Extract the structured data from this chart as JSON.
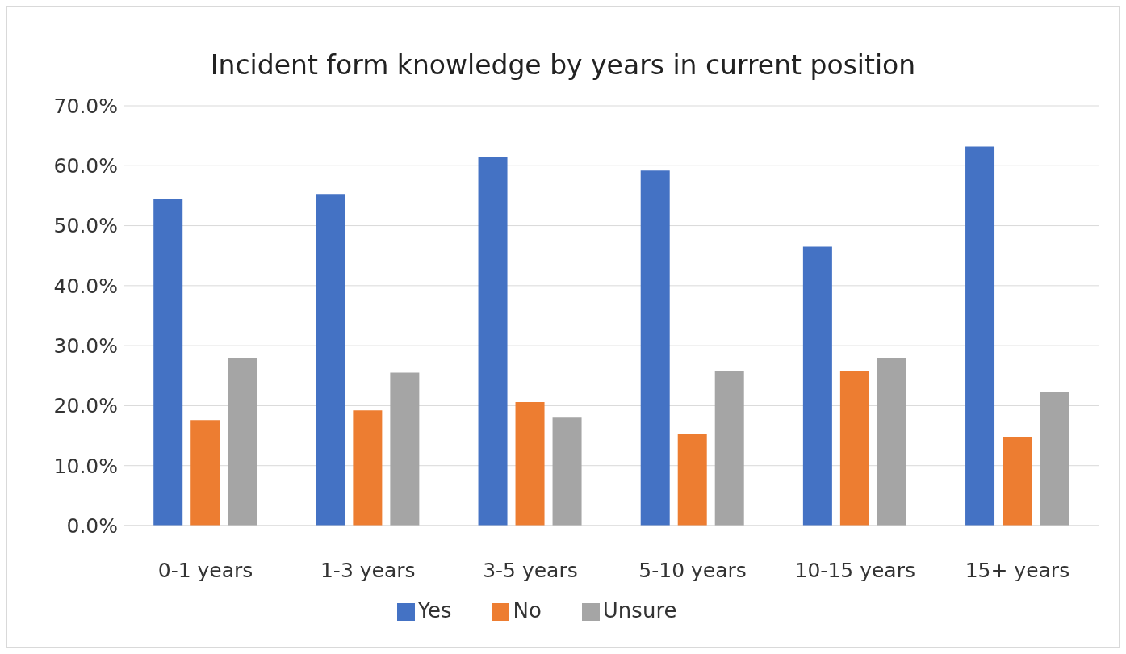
{
  "chart_data": {
    "type": "bar",
    "title": "Incident form knowledge by years in current position",
    "categories": [
      "0-1 years",
      "1-3 years",
      "3-5 years",
      "5-10 years",
      "10-15 years",
      "15+ years"
    ],
    "series": [
      {
        "name": "Yes",
        "color": "#4472c4",
        "values": [
          54.5,
          55.3,
          61.5,
          59.2,
          46.5,
          63.2
        ]
      },
      {
        "name": "No",
        "color": "#ed7d31",
        "values": [
          17.6,
          19.2,
          20.6,
          15.2,
          25.8,
          14.8
        ]
      },
      {
        "name": "Unsure",
        "color": "#a5a5a5",
        "values": [
          28.0,
          25.5,
          18.0,
          25.8,
          27.9,
          22.3
        ]
      }
    ],
    "ylim": [
      0,
      70
    ],
    "yticks": [
      {
        "value": 0,
        "label": "0.0%"
      },
      {
        "value": 10,
        "label": "10.0%"
      },
      {
        "value": 20,
        "label": "20.0%"
      },
      {
        "value": 30,
        "label": "30.0%"
      },
      {
        "value": 40,
        "label": "40.0%"
      },
      {
        "value": 50,
        "label": "50.0%"
      },
      {
        "value": 60,
        "label": "60.0%"
      },
      {
        "value": 70,
        "label": "70.0%"
      }
    ],
    "grid": "y",
    "legend": "bottom"
  }
}
